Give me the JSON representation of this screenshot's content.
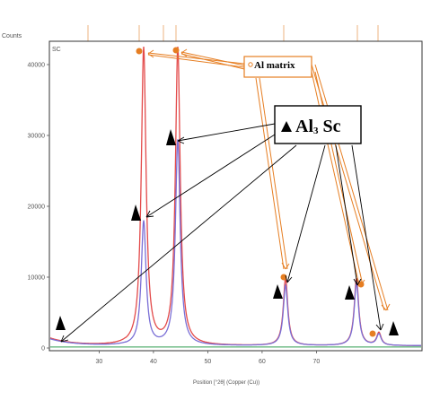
{
  "chart_data": {
    "type": "line",
    "xlabel": "Position [°2θ] (Copper (Cu))",
    "ylabel": "Counts",
    "panel_label": "SC",
    "xlim": [
      21,
      70.5
    ],
    "ylim": [
      0,
      43000
    ],
    "x_ticks": [
      30,
      40,
      50,
      60,
      70
    ],
    "y_ticks": [
      0,
      10000,
      20000,
      30000,
      40000
    ],
    "x_tick_labels": [
      "30",
      "40",
      "50",
      "60",
      "70"
    ],
    "y_tick_labels": [
      "0",
      "10000",
      "20000",
      "30000",
      "40000"
    ],
    "grid": false,
    "series": [
      {
        "color": "#e34a4a",
        "x": [
          21,
          22,
          25,
          30,
          35,
          37.5,
          38.0,
          38.3,
          38.6,
          39.2,
          40,
          43,
          44.0,
          44.5,
          45.0,
          45.8,
          50,
          55,
          60,
          64.2,
          64.8,
          65.2,
          65.8,
          70
        ],
        "y": [
          300,
          1200,
          900,
          600,
          500,
          600,
          8000,
          42000,
          8000,
          700,
          400,
          400,
          8000,
          42000,
          8000,
          500,
          300,
          250,
          250,
          400,
          9500,
          9500,
          400,
          300
        ]
      },
      {
        "color": "#7a6fd6",
        "x": [
          21,
          22,
          25,
          30,
          35,
          37.5,
          38.0,
          38.3,
          38.6,
          39.2,
          40,
          43,
          44.0,
          44.5,
          45.0,
          45.8,
          50,
          55,
          60,
          64.2,
          64.8,
          65.2,
          65.8,
          70
        ],
        "y": [
          300,
          1100,
          800,
          600,
          500,
          600,
          5000,
          18000,
          5000,
          700,
          400,
          400,
          10000,
          29000,
          10000,
          500,
          300,
          250,
          250,
          400,
          8500,
          8500,
          400,
          300
        ]
      },
      {
        "color": "#2e9e4f",
        "x": [
          21,
          30,
          40,
          50,
          60,
          70
        ],
        "y": [
          150,
          150,
          150,
          150,
          150,
          150
        ]
      }
    ],
    "top_marker_positions": [
      21,
      38.3,
      40.2,
      44.5,
      64.9,
      77.8,
      81.6
    ]
  },
  "annotations": {
    "al_matrix_label": "Al matrix",
    "al3sc_label_prefix": "Al",
    "al3sc_sub": "3",
    "al3sc_label_suffix": " Sc",
    "al_color": "#e67e22",
    "sc_color": "#000000"
  }
}
